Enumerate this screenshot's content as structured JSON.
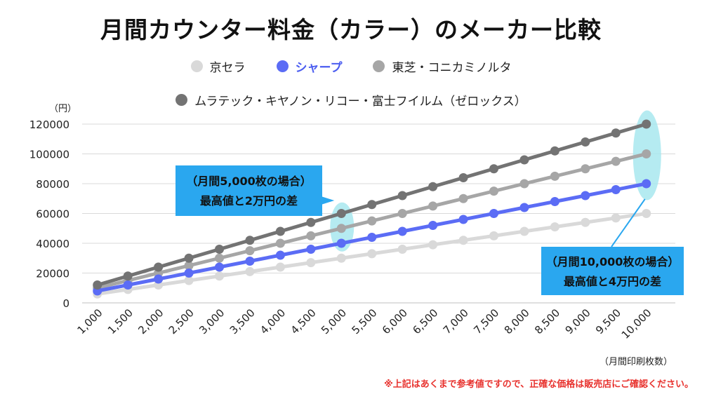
{
  "chart_data": {
    "type": "line",
    "title": "月間カウンター料金（カラー）のメーカー比較",
    "xlabel": "（月間印刷枚数）",
    "ylabel": "（円）",
    "categories": [
      "1,000",
      "1,500",
      "2,000",
      "2,500",
      "3,000",
      "3,500",
      "4,000",
      "4,500",
      "5,000",
      "5,500",
      "6,000",
      "6,500",
      "7,000",
      "7,500",
      "8,000",
      "8,500",
      "9,000",
      "9,500",
      "10,000"
    ],
    "ylim": [
      0,
      120000
    ],
    "yticks": [
      0,
      20000,
      40000,
      60000,
      80000,
      100000,
      120000
    ],
    "ytick_labels": [
      "0",
      "20000",
      "40000",
      "60000",
      "80000",
      "100000",
      "120000"
    ],
    "grid": true,
    "legend_position": "top",
    "series": [
      {
        "name": "京セラ",
        "color": "#d9d9d9",
        "text_color": "#222222",
        "values": [
          6000,
          9000,
          12000,
          15000,
          18000,
          21000,
          24000,
          27000,
          30000,
          33000,
          36000,
          39000,
          42000,
          45000,
          48000,
          51000,
          54000,
          57000,
          60000
        ]
      },
      {
        "name": "東芝・コニカミノルタ",
        "color": "#a6a6a6",
        "text_color": "#222222",
        "values": [
          10000,
          15000,
          20000,
          25000,
          30000,
          35000,
          40000,
          45000,
          50000,
          55000,
          60000,
          65000,
          70000,
          75000,
          80000,
          85000,
          90000,
          95000,
          100000
        ]
      },
      {
        "name": "シャープ",
        "color": "#5b6cf5",
        "text_color": "#4a5cf0",
        "values": [
          8000,
          12000,
          16000,
          20000,
          24000,
          28000,
          32000,
          36000,
          40000,
          44000,
          48000,
          52000,
          56000,
          60000,
          64000,
          68000,
          72000,
          76000,
          80000
        ]
      },
      {
        "name": "ムラテック・キヤノン・リコー・富士フイルム（ゼロックス）",
        "color": "#737373",
        "text_color": "#222222",
        "values": [
          12000,
          18000,
          24000,
          30000,
          36000,
          42000,
          48000,
          54000,
          60000,
          66000,
          72000,
          78000,
          84000,
          90000,
          96000,
          102000,
          108000,
          114000,
          120000
        ]
      }
    ],
    "legend_rows": [
      [
        0,
        2,
        1
      ],
      [
        3
      ]
    ],
    "annotations": [
      {
        "line1": "（月間5,000枚の場合）",
        "line2": "最高値と2万円の差",
        "at_category": "5,000"
      },
      {
        "line1": "（月間10,000枚の場合）",
        "line2": "最高値と4万円の差",
        "at_category": "10,000"
      }
    ],
    "highlight_color": "#a8e8ee",
    "callout_color": "#2aa7ef"
  },
  "footnote": "※上記はあくまで参考値ですので、正確な価格は販売店にご確認ください。"
}
